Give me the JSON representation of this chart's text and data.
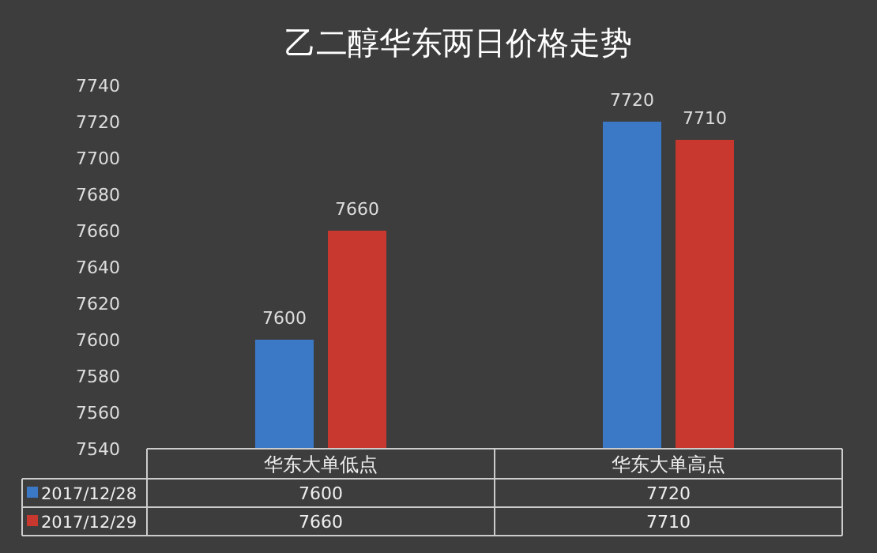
{
  "chart_data": {
    "type": "bar",
    "title": "乙二醇华东两日价格走势",
    "categories": [
      "华东大单低点",
      "华东大单高点"
    ],
    "series": [
      {
        "name": "2017/12/28",
        "color": "#3b78c6",
        "values": [
          7600,
          7720
        ]
      },
      {
        "name": "2017/12/29",
        "color": "#c9382f",
        "values": [
          7660,
          7710
        ]
      }
    ],
    "annotations": [
      {
        "text": "7600",
        "x": "华东大单低点",
        "y": 7600
      },
      {
        "text": "7660",
        "x": "华东大单低点",
        "y": 7660
      },
      {
        "text": "7720",
        "x": "华东大单高点",
        "y": 7720
      },
      {
        "text": "7710",
        "x": "华东大单高点",
        "y": 7710
      }
    ],
    "ylim": [
      7540,
      7740
    ],
    "yticks": [
      7540,
      7560,
      7580,
      7600,
      7620,
      7640,
      7660,
      7680,
      7700,
      7720,
      7740
    ],
    "grid": false,
    "legend": "bottom",
    "data_labels": true
  }
}
